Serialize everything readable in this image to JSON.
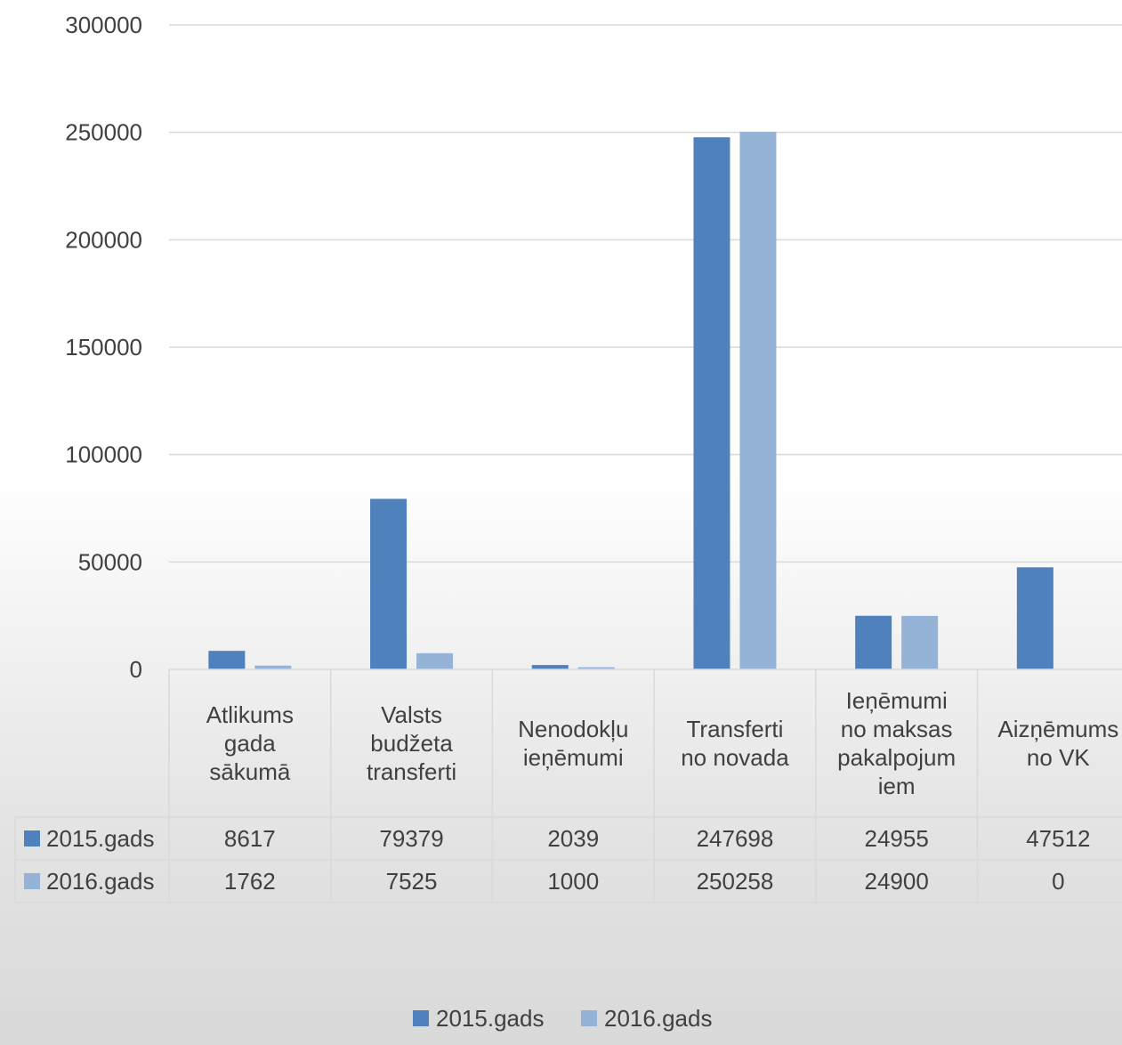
{
  "chart_data": {
    "type": "bar",
    "categories": [
      "Atlikums gada sākumā",
      "Valsts budžeta transferti",
      "Nenodokļu ieņēmumi",
      "Transferti no novada",
      "Ieņēmumi no maksas pakalpojumiem",
      "Aizņēmums no VK"
    ],
    "category_lines": [
      [
        "Atlikums",
        "gada",
        "sākumā"
      ],
      [
        "Valsts",
        "budžeta",
        "transferti"
      ],
      [
        "Nenodokļu",
        "ieņēmumi"
      ],
      [
        "Transferti",
        "no novada"
      ],
      [
        "Ieņēmumi",
        "no maksas",
        "pakalpojum",
        "iem"
      ],
      [
        "Aizņēmums",
        "no VK"
      ]
    ],
    "series": [
      {
        "name": "2015.gads",
        "color": "#4f81bd",
        "values": [
          8617,
          79379,
          2039,
          247698,
          24955,
          47512
        ]
      },
      {
        "name": "2016.gads",
        "color": "#95b3d7",
        "values": [
          1762,
          7525,
          1000,
          250258,
          24900,
          0
        ]
      }
    ],
    "yticks": [
      "0",
      "50000",
      "100000",
      "150000",
      "200000",
      "250000",
      "300000"
    ],
    "ylim": [
      0,
      300000
    ],
    "grid": true,
    "legend": "bottom-center",
    "data_table": true
  }
}
